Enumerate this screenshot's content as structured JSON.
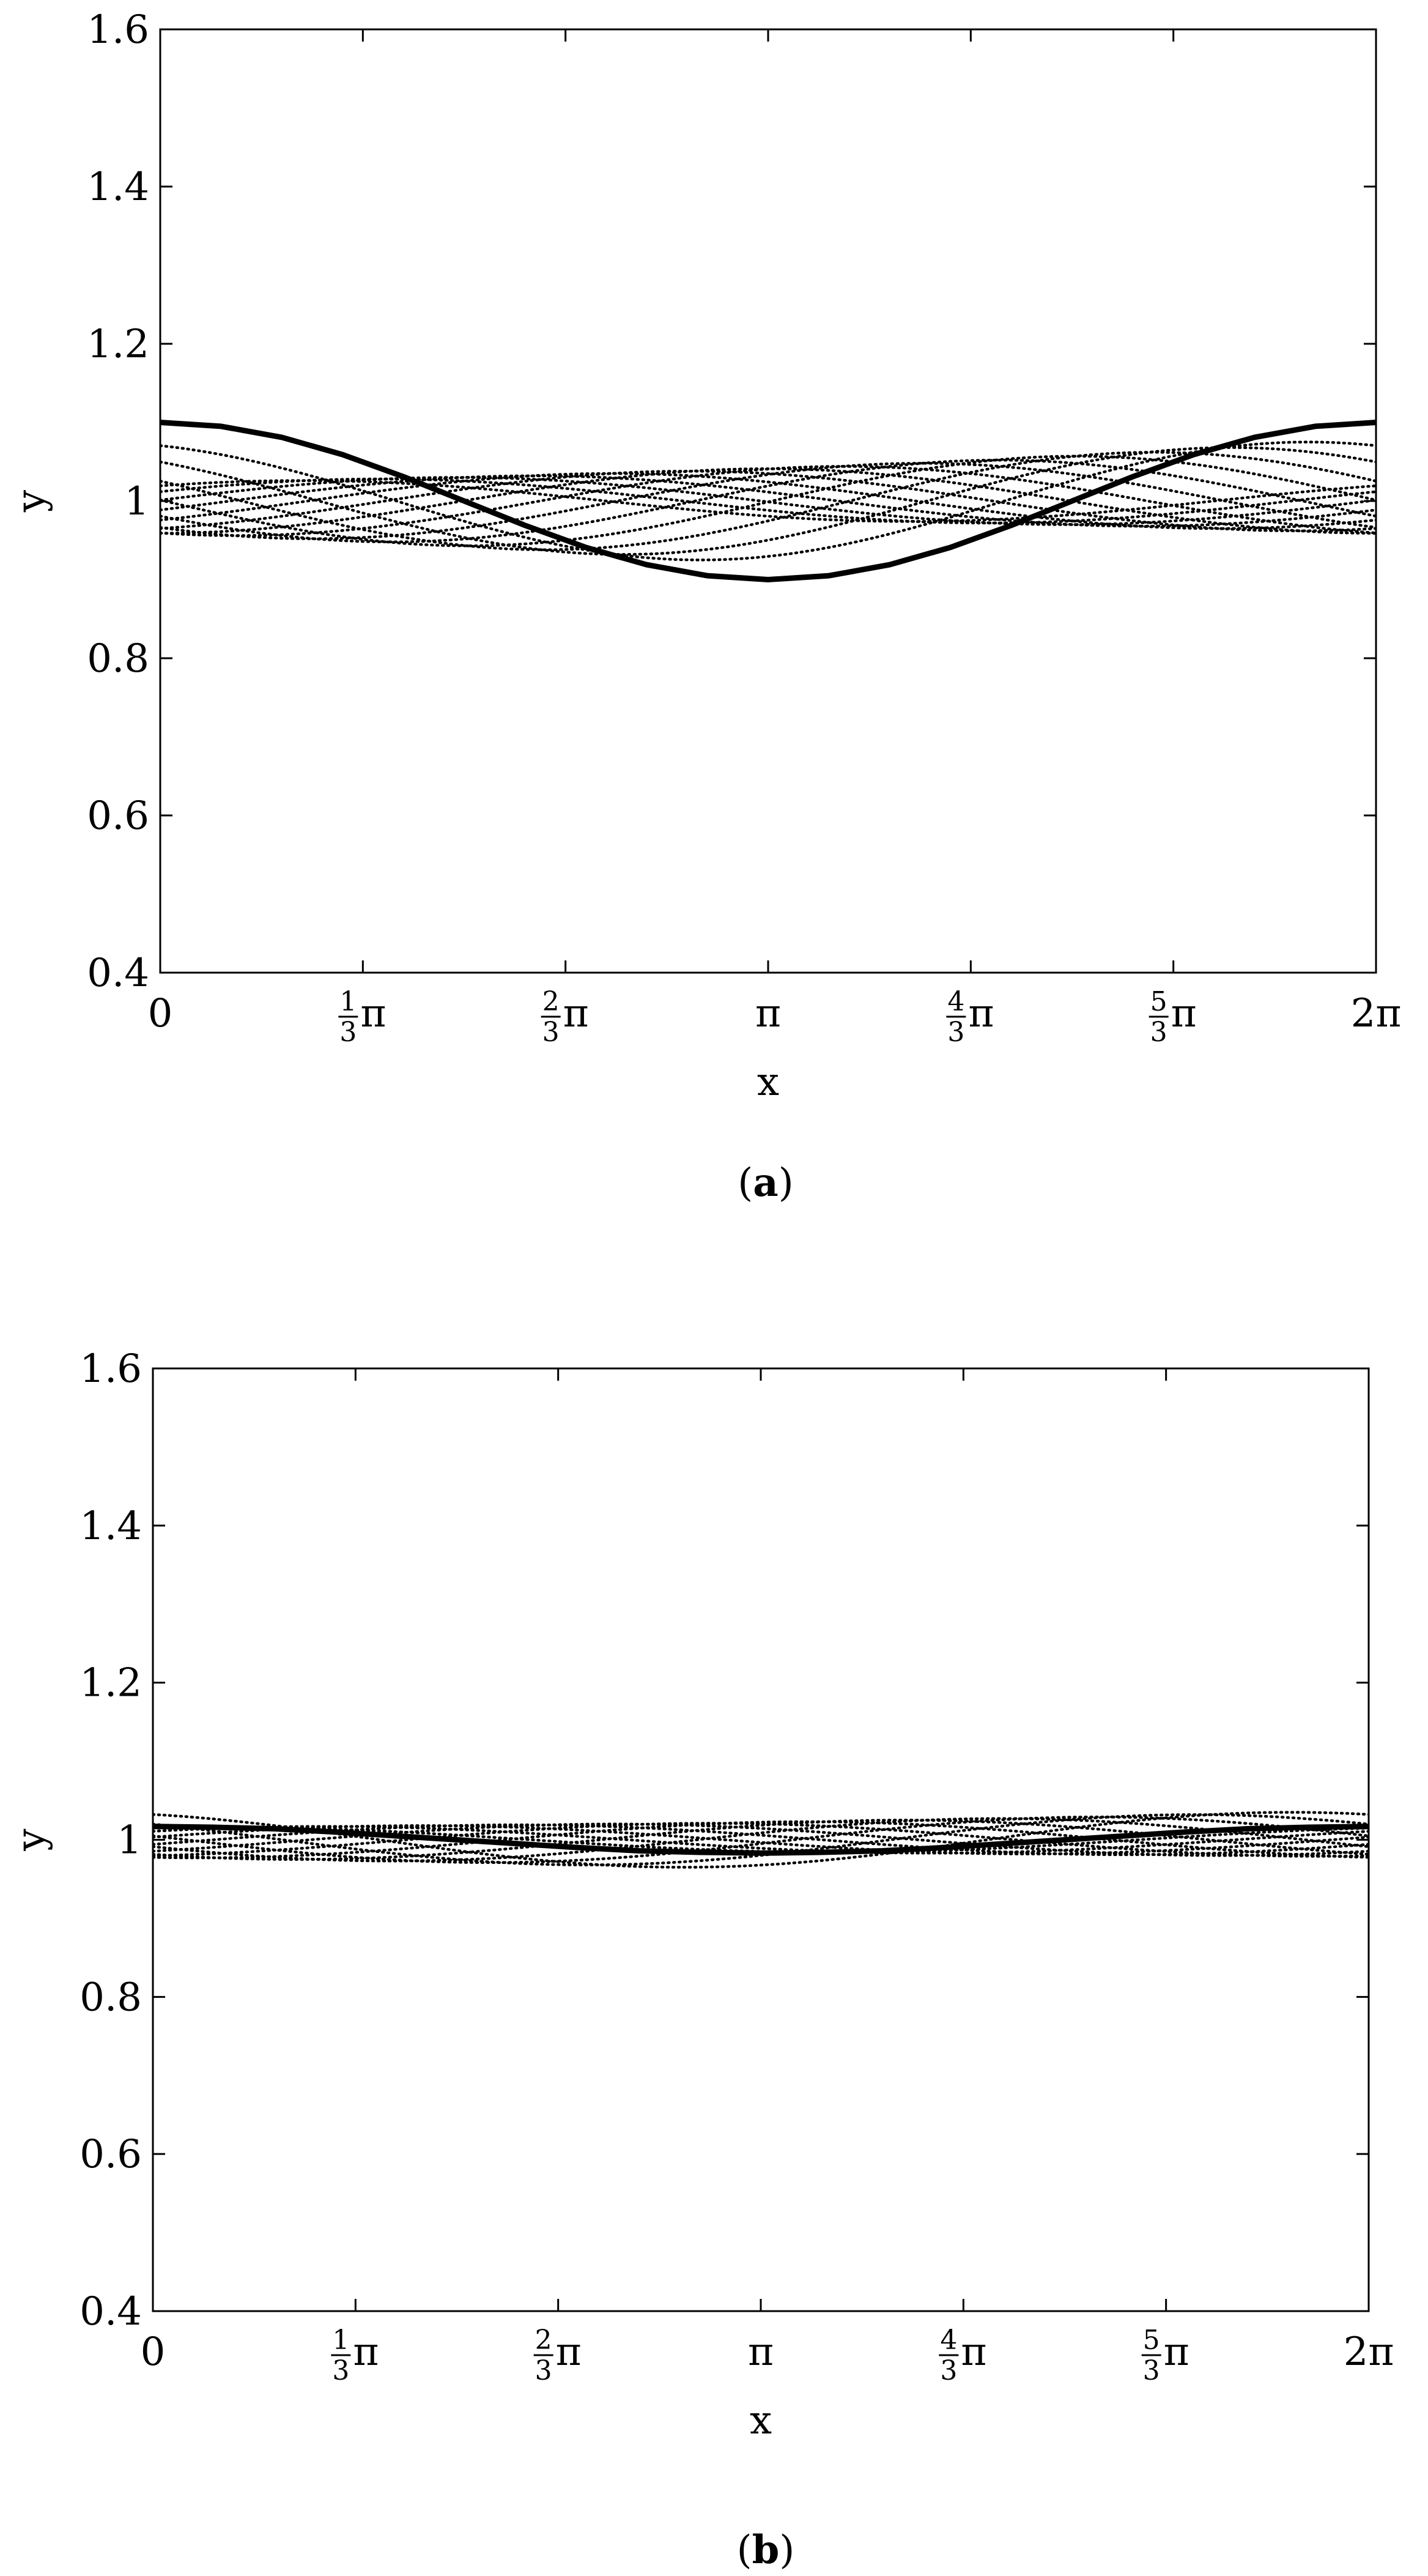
{
  "charts": [
    {
      "id": "a",
      "caption": {
        "open": "(",
        "letter": "a",
        "close": ")"
      }
    },
    {
      "id": "b",
      "caption": {
        "open": "(",
        "letter": "b",
        "close": ")"
      }
    }
  ],
  "chart_data": [
    {
      "type": "line",
      "panel": "a",
      "xlabel": "x",
      "ylabel": "y",
      "xlim": [
        0,
        6.2832
      ],
      "ylim": [
        0.4,
        1.6
      ],
      "grid": false,
      "legend": "none",
      "yticks": [
        {
          "value": 0.4,
          "label": "0.4"
        },
        {
          "value": 0.6,
          "label": "0.6"
        },
        {
          "value": 0.8,
          "label": "0.8"
        },
        {
          "value": 1.0,
          "label": "1"
        },
        {
          "value": 1.2,
          "label": "1.2"
        },
        {
          "value": 1.4,
          "label": "1.4"
        },
        {
          "value": 1.6,
          "label": "1.6"
        }
      ],
      "xticks": [
        {
          "value": 0,
          "pre": "0",
          "num": "",
          "den": "",
          "post": ""
        },
        {
          "value": 1.0472,
          "pre": "",
          "num": "1",
          "den": "3",
          "post": "π"
        },
        {
          "value": 2.0944,
          "pre": "",
          "num": "2",
          "den": "3",
          "post": "π"
        },
        {
          "value": 3.1416,
          "pre": "",
          "num": "",
          "den": "",
          "post": "π"
        },
        {
          "value": 4.1888,
          "pre": "",
          "num": "4",
          "den": "3",
          "post": "π"
        },
        {
          "value": 5.236,
          "pre": "",
          "num": "5",
          "den": "3",
          "post": "π"
        },
        {
          "value": 6.2832,
          "pre": "2",
          "num": "",
          "den": "",
          "post": "π"
        }
      ],
      "series": [
        {
          "style": "solid",
          "description": "y = 1 + 0.1·cos(x)",
          "x": [
            0,
            0.3142,
            0.6283,
            0.9425,
            1.2566,
            1.5708,
            1.885,
            2.1991,
            2.5133,
            2.8274,
            3.1416,
            3.4558,
            3.7699,
            4.0841,
            4.3982,
            4.7124,
            5.0265,
            5.3407,
            5.6549,
            5.969,
            6.2832
          ],
          "y": [
            1.1,
            1.095,
            1.081,
            1.059,
            1.031,
            1.0,
            0.969,
            0.941,
            0.919,
            0.905,
            0.9,
            0.905,
            0.919,
            0.941,
            0.969,
            1.0,
            1.031,
            1.059,
            1.081,
            1.095,
            1.1
          ]
        },
        {
          "style": "dotted",
          "curves": [
            {
              "amplitude": 0.075,
              "phase": 0.35
            },
            {
              "amplitude": 0.068,
              "phase": 0.75
            },
            {
              "amplitude": 0.062,
              "phase": 1.15
            },
            {
              "amplitude": 0.057,
              "phase": 1.55
            },
            {
              "amplitude": 0.052,
              "phase": 1.95
            },
            {
              "amplitude": 0.048,
              "phase": 2.35
            },
            {
              "amplitude": 0.044,
              "phase": 2.75
            },
            {
              "amplitude": 0.041,
              "phase": 3.15
            },
            {
              "amplitude": 0.038,
              "phase": 3.55
            },
            {
              "amplitude": 0.035,
              "phase": 3.95
            },
            {
              "amplitude": 0.032,
              "phase": 4.35
            },
            {
              "amplitude": 0.03,
              "phase": 4.75
            },
            {
              "amplitude": 0.028,
              "phase": 5.15
            },
            {
              "amplitude": 0.026,
              "phase": 5.55
            }
          ]
        }
      ]
    },
    {
      "type": "line",
      "panel": "b",
      "xlabel": "x",
      "ylabel": "y",
      "xlim": [
        0,
        6.2832
      ],
      "ylim": [
        0.4,
        1.6
      ],
      "grid": false,
      "legend": "none",
      "yticks": [
        {
          "value": 0.4,
          "label": "0.4"
        },
        {
          "value": 0.6,
          "label": "0.6"
        },
        {
          "value": 0.8,
          "label": "0.8"
        },
        {
          "value": 1.0,
          "label": "1"
        },
        {
          "value": 1.2,
          "label": "1.2"
        },
        {
          "value": 1.4,
          "label": "1.4"
        },
        {
          "value": 1.6,
          "label": "1.6"
        }
      ],
      "xticks": [
        {
          "value": 0,
          "pre": "0",
          "num": "",
          "den": "",
          "post": ""
        },
        {
          "value": 1.0472,
          "pre": "",
          "num": "1",
          "den": "3",
          "post": "π"
        },
        {
          "value": 2.0944,
          "pre": "",
          "num": "2",
          "den": "3",
          "post": "π"
        },
        {
          "value": 3.1416,
          "pre": "",
          "num": "",
          "den": "",
          "post": "π"
        },
        {
          "value": 4.1888,
          "pre": "",
          "num": "4",
          "den": "3",
          "post": "π"
        },
        {
          "value": 5.236,
          "pre": "",
          "num": "5",
          "den": "3",
          "post": "π"
        },
        {
          "value": 6.2832,
          "pre": "2",
          "num": "",
          "den": "",
          "post": "π"
        }
      ],
      "series": [
        {
          "style": "solid",
          "description": "y ≈ 1 + 0.017·cos(x)",
          "x": [
            0,
            0.3142,
            0.6283,
            0.9425,
            1.2566,
            1.5708,
            1.885,
            2.1991,
            2.5133,
            2.8274,
            3.1416,
            3.4558,
            3.7699,
            4.0841,
            4.3982,
            4.7124,
            5.0265,
            5.3407,
            5.6549,
            5.969,
            6.2832
          ],
          "y": [
            1.017,
            1.016,
            1.014,
            1.01,
            1.005,
            1.0,
            0.995,
            0.99,
            0.986,
            0.984,
            0.983,
            0.984,
            0.986,
            0.99,
            0.995,
            1.0,
            1.005,
            1.01,
            1.014,
            1.016,
            1.017
          ]
        },
        {
          "style": "dotted",
          "curves": [
            {
              "amplitude": 0.035,
              "phase": 0.4
            },
            {
              "amplitude": 0.032,
              "phase": 0.9
            },
            {
              "amplitude": 0.029,
              "phase": 1.4
            },
            {
              "amplitude": 0.027,
              "phase": 1.9
            },
            {
              "amplitude": 0.025,
              "phase": 2.4
            },
            {
              "amplitude": 0.023,
              "phase": 2.9
            },
            {
              "amplitude": 0.021,
              "phase": 3.4
            },
            {
              "amplitude": 0.02,
              "phase": 3.9
            },
            {
              "amplitude": 0.019,
              "phase": 4.4
            },
            {
              "amplitude": 0.018,
              "phase": 4.9
            },
            {
              "amplitude": 0.017,
              "phase": 5.4
            },
            {
              "amplitude": 0.016,
              "phase": 5.9
            }
          ]
        }
      ]
    }
  ]
}
